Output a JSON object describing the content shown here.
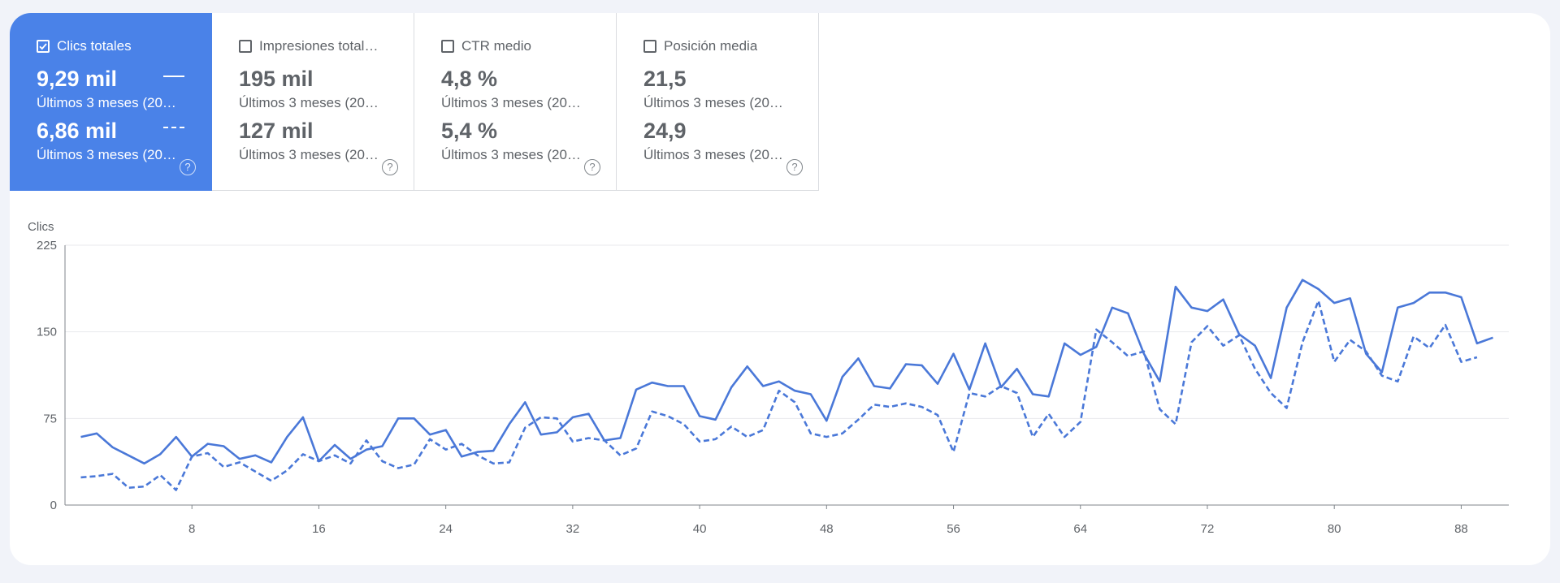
{
  "cards": [
    {
      "title": "Clics totales",
      "checked": true,
      "value1": "9,29 mil",
      "sub1": "Últimos 3 meses (20…",
      "value2": "6,86 mil",
      "sub2": "Últimos 3 meses (20…"
    },
    {
      "title": "Impresiones total…",
      "checked": false,
      "value1": "195 mil",
      "sub1": "Últimos 3 meses (20…",
      "value2": "127 mil",
      "sub2": "Últimos 3 meses (20…"
    },
    {
      "title": "CTR medio",
      "checked": false,
      "value1": "4,8 %",
      "sub1": "Últimos 3 meses (20…",
      "value2": "5,4 %",
      "sub2": "Últimos 3 meses (20…"
    },
    {
      "title": "Posición media",
      "checked": false,
      "value1": "21,5",
      "sub1": "Últimos 3 meses (20…",
      "value2": "24,9",
      "sub2": "Últimos 3 meses (20…"
    }
  ],
  "help_glyph": "?",
  "colors": {
    "accent": "#4a82e8",
    "line": "#4a78d8"
  },
  "chart_data": {
    "type": "line",
    "title": "",
    "xlabel": "",
    "ylabel": "Clics",
    "ylim": [
      0,
      225
    ],
    "xlim": [
      0,
      91
    ],
    "yticks": [
      0,
      75,
      150,
      225
    ],
    "xticks": [
      8,
      16,
      24,
      32,
      40,
      48,
      56,
      64,
      72,
      80,
      88
    ],
    "grid": true,
    "series": [
      {
        "style": "solid",
        "values": [
          59,
          62,
          50,
          43,
          36,
          44,
          59,
          42,
          53,
          51,
          40,
          43,
          37,
          59,
          76,
          38,
          52,
          40,
          48,
          51,
          75,
          75,
          61,
          65,
          42,
          46,
          47,
          70,
          89,
          61,
          63,
          76,
          79,
          56,
          58,
          100,
          106,
          103,
          103,
          77,
          74,
          102,
          120,
          103,
          107,
          99,
          96,
          73,
          111,
          127,
          103,
          101,
          122,
          121,
          105,
          131,
          100,
          140,
          102,
          118,
          96,
          94,
          140,
          130,
          137,
          171,
          166,
          131,
          107,
          189,
          171,
          168,
          178,
          148,
          138,
          110,
          171,
          195,
          187,
          175,
          179,
          131,
          115,
          171,
          175,
          184,
          184,
          180,
          140,
          145
        ]
      },
      {
        "style": "dashed",
        "values": [
          24,
          25,
          27,
          15,
          16,
          26,
          13,
          42,
          45,
          33,
          37,
          29,
          21,
          30,
          44,
          38,
          43,
          36,
          56,
          38,
          32,
          35,
          57,
          48,
          53,
          43,
          36,
          37,
          67,
          76,
          75,
          55,
          58,
          56,
          43,
          49,
          81,
          77,
          70,
          55,
          57,
          68,
          59,
          65,
          99,
          89,
          62,
          59,
          62,
          74,
          87,
          85,
          88,
          85,
          78,
          46,
          97,
          94,
          103,
          97,
          59,
          79,
          59,
          72,
          152,
          141,
          129,
          133,
          83,
          70,
          141,
          155,
          138,
          147,
          118,
          97,
          84,
          141,
          177,
          124,
          143,
          133,
          112,
          107,
          146,
          136,
          156,
          124,
          128
        ]
      }
    ]
  }
}
